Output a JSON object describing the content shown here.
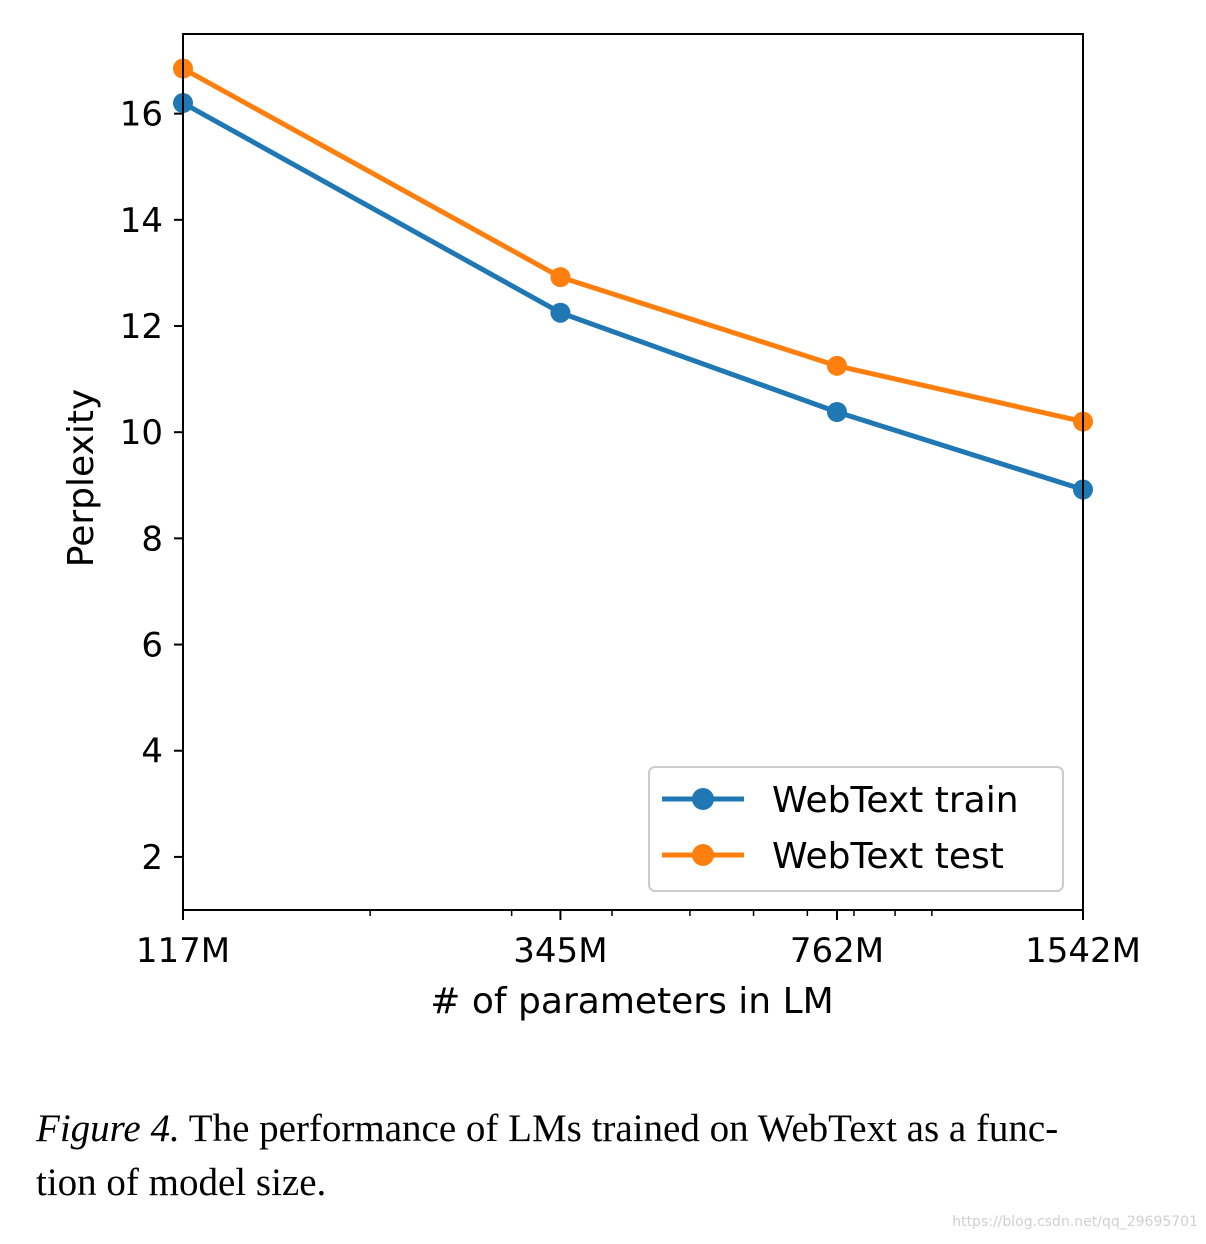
{
  "chart_data": {
    "type": "line",
    "x_scale": "log",
    "categories": [
      "117M",
      "345M",
      "762M",
      "1542M"
    ],
    "x": [
      117,
      345,
      762,
      1542
    ],
    "series": [
      {
        "name": "WebText train",
        "color": "#1f77b4",
        "values": [
          16.2,
          12.25,
          10.38,
          8.92
        ]
      },
      {
        "name": "WebText test",
        "color": "#ff7f0e",
        "values": [
          16.85,
          12.92,
          11.25,
          10.2
        ]
      }
    ],
    "xlabel": "# of parameters in LM",
    "ylabel": "Perplexity",
    "ylim": [
      1,
      17.5
    ],
    "yticks": [
      2,
      4,
      6,
      8,
      10,
      12,
      14,
      16
    ],
    "grid": false,
    "legend_position": "lower-right"
  },
  "caption": {
    "label": "Figure 4.",
    "line1": " The performance of LMs trained on WebText as a func-",
    "line2": "tion of model size."
  },
  "watermark": "https://blog.csdn.net/qq_29695701"
}
